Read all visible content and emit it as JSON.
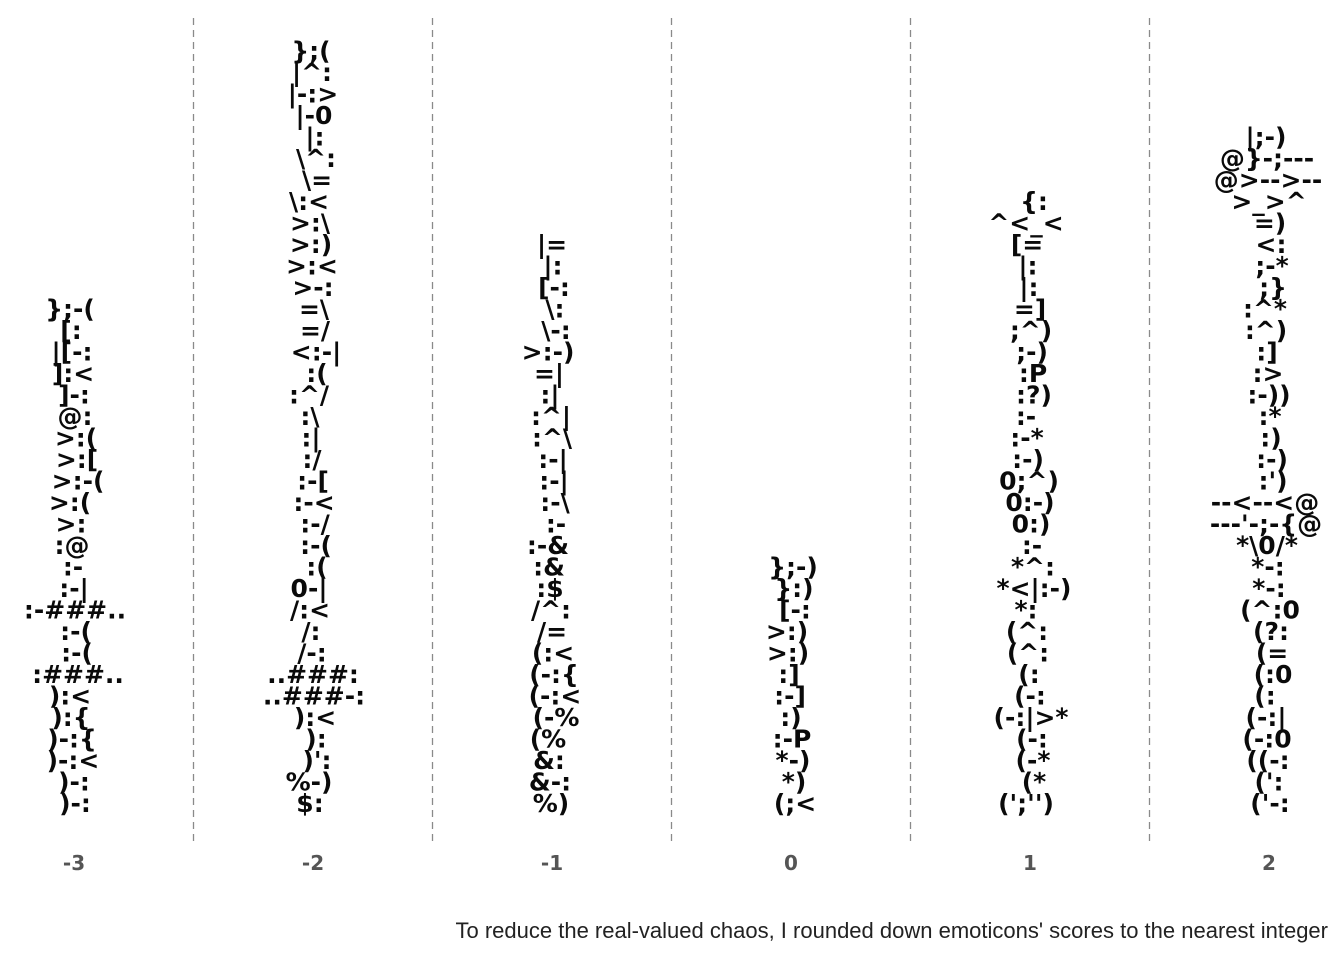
{
  "chart_data": {
    "type": "strip",
    "categories": [
      "-3",
      "-2",
      "-1",
      "0",
      "1",
      "2"
    ],
    "series": [
      {
        "x": "-3",
        "values": [
          "};-(",
          "[:",
          "|[-:",
          "]:<",
          "]-:",
          "@:",
          ">:(",
          ">:[",
          ">:-(",
          ">:(",
          ">:",
          ":@",
          ":-",
          ":-|",
          ":-###..",
          ":-(",
          ":-(",
          ":###..",
          "):<",
          "):{",
          ")-:{",
          ")-:<",
          ")-:",
          ")-:"
        ]
      },
      {
        "x": "-2",
        "values": [
          "};(",
          "|^:",
          "|-:>",
          "|-0",
          "|:",
          "\\^:",
          "\\=",
          "\\:<",
          ">:\\",
          ">:)",
          ">:<",
          ">-:",
          "=\\",
          "=/",
          "<:-|",
          ":(",
          ":^/",
          ":\\",
          ":|",
          ":/",
          ":-[",
          ":-<",
          ":-/",
          ":-(",
          ":(",
          "0-|",
          "/:<",
          "/:",
          "/-:",
          "..###:",
          "..###-:",
          "):<",
          "):",
          ")':",
          "%-)",
          "$:"
        ]
      },
      {
        "x": "-1",
        "values": [
          "|=",
          "|:",
          "[-:",
          "\\:",
          "\\-:",
          ">:-)",
          "=|",
          ":|",
          ":^|",
          ":^\\",
          ":-|",
          ":-|",
          ":-\\",
          ":-",
          ":-&",
          ":&",
          ":$",
          "/^:",
          "/=",
          "(:<",
          "(-:{",
          "(-:<",
          "(-%",
          "(%",
          "&:",
          "&-:",
          "%)"
        ]
      },
      {
        "x": "0",
        "values": [
          "};-)",
          "}:)",
          "[-:",
          ">:)",
          ">:)",
          ":]",
          ":-]",
          ":)",
          ":-P",
          "*-)",
          "*)",
          "(;<"
        ]
      },
      {
        "x": "1",
        "values": [
          "{:",
          "^<_<",
          "[=",
          "|:",
          "|:",
          "=]",
          ";^)",
          ";-)",
          ":P",
          ":?)",
          ":-",
          ":-*",
          ":-)",
          "0;^)",
          "0:-)",
          "0:)",
          ":-",
          "*^:",
          "*<|:-)",
          "*:",
          "(^:",
          "(^:",
          "(:",
          "(-:",
          "(-:|>*",
          "(-:",
          "(-*",
          "(*",
          "(';'')"
        ]
      },
      {
        "x": "2",
        "values": [
          "|;-)",
          "@}-;---",
          "@>-->--",
          ">_>^",
          "=)",
          "<:",
          ";-*",
          ";}",
          ":^*",
          ":^)",
          ":]",
          ":>",
          ":-))",
          ":*",
          ":)",
          ":-)",
          ":')",
          "--<--<@",
          "---'-;-{@",
          "*\\0/*",
          "*-:",
          "*-:",
          "(^:0",
          "(?:",
          "(=",
          "(:0",
          "(:",
          "(-:|",
          "(-:0",
          "((-:",
          "(':",
          "('-:"
        ]
      }
    ]
  },
  "caption": "To reduce the real-valued chaos, I rounded down emoticons' scores to the nearest integer"
}
